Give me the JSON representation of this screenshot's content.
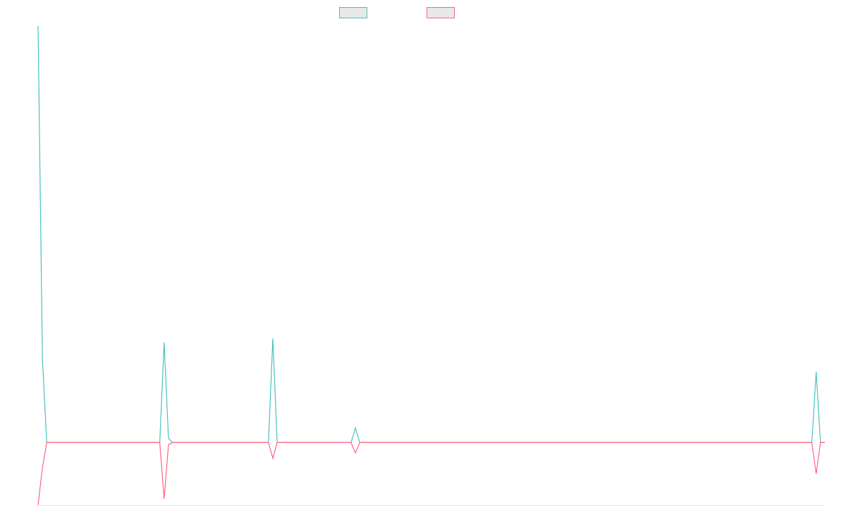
{
  "chart_data": {
    "type": "line",
    "title": "",
    "xlabel": "",
    "ylabel": "",
    "legend_position": "top-center",
    "grid": false,
    "x": [
      0,
      1,
      2,
      3,
      28,
      29,
      30,
      31,
      32,
      39,
      40,
      41,
      53,
      54,
      55,
      72,
      73,
      74,
      88,
      89,
      90,
      178,
      179,
      180,
      181
    ],
    "xlim": [
      0,
      181
    ],
    "ylim": [
      -15,
      100
    ],
    "series": [
      {
        "color": "#4bc0c0",
        "values": [
          100,
          20,
          0,
          0,
          0,
          24,
          1,
          0,
          0,
          0,
          0,
          0,
          0,
          25,
          0,
          0,
          3.5,
          0,
          0,
          0,
          0,
          0,
          17,
          0,
          0
        ]
      },
      {
        "color": "#ff6384",
        "values": [
          -15,
          -6,
          0,
          0,
          0,
          -13.5,
          -0.5,
          0,
          0,
          0,
          0,
          0,
          0,
          -3.8,
          0,
          0,
          -2.5,
          0,
          0,
          0,
          0,
          0,
          -7.5,
          0,
          0
        ]
      }
    ]
  }
}
